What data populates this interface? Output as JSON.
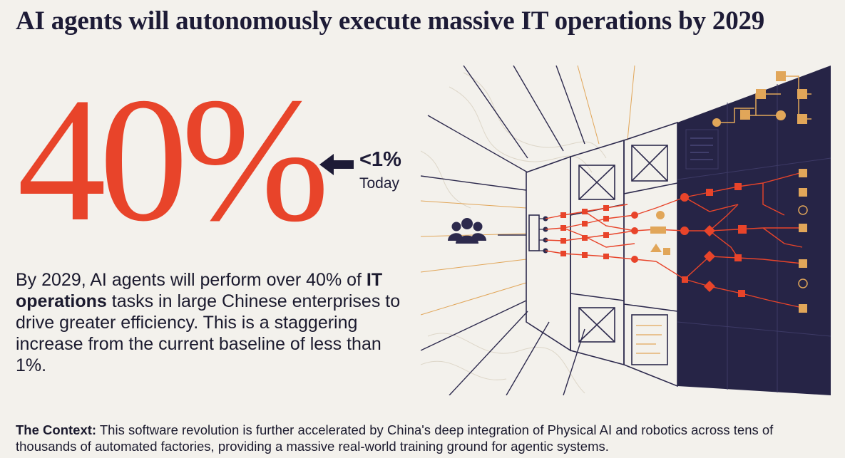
{
  "header": {
    "title": "AI agents will autonomously execute massive IT operations by 2029"
  },
  "stat": {
    "headline_value": "40%",
    "today_value": "<1%",
    "today_label": "Today"
  },
  "description": {
    "part1": "By 2029, AI agents will perform over 40% of ",
    "highlight": "IT operations",
    "part2": " tasks in large Chinese enterprises to drive greater efficiency. This is a staggering increase from the current baseline of less than 1%."
  },
  "context": {
    "label": "The Context:",
    "text": " This software revolution is further accelerated by China's deep integration of Physical AI and robotics across tens of thousands of automated factories, providing a massive real-world training ground for agentic systems."
  },
  "colors": {
    "accent": "#e8442a",
    "navy": "#1d1b36",
    "gold": "#e1a659",
    "background": "#f3f1ec"
  },
  "icons": {
    "arrow": "arrow-left-icon",
    "people": "people-group-icon"
  }
}
